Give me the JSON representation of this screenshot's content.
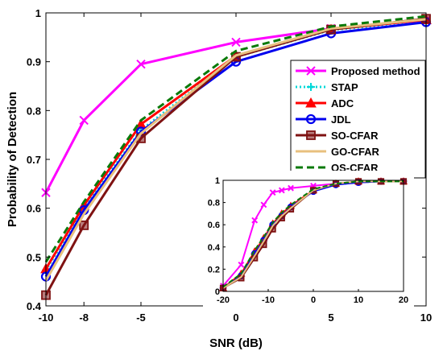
{
  "chart_data": [
    {
      "type": "line",
      "xlabel": "SNR (dB)",
      "ylabel": "Probability of Detection",
      "xlim": [
        -10,
        10
      ],
      "ylim": [
        0.4,
        1.0
      ],
      "xticks": [
        -10,
        -8,
        -5,
        0,
        5,
        10
      ],
      "yticks": [
        0.4,
        0.5,
        0.6,
        0.7,
        0.8,
        0.9,
        1.0
      ],
      "xtick_labels": [
        "-10",
        "-8",
        "-5",
        "0",
        "5",
        "10"
      ],
      "ytick_labels": [
        "0.4",
        "0.5",
        "0.6",
        "0.7",
        "0.8",
        "0.9",
        "1"
      ],
      "grid": false,
      "legend_position": "top-right",
      "x": [
        -10,
        -8,
        -5,
        0,
        5,
        10
      ],
      "series": [
        {
          "name": "Proposed method",
          "color": "#ff00ff",
          "style": "solid",
          "marker": "x",
          "values": [
            0.632,
            0.78,
            0.895,
            0.94,
            0.968,
            0.985
          ]
        },
        {
          "name": "STAP",
          "color": "#00d8d8",
          "style": "dotted",
          "marker": "plus",
          "values": [
            0.473,
            0.601,
            0.76,
            0.91,
            0.965,
            0.982
          ]
        },
        {
          "name": "ADC",
          "color": "#ff0000",
          "style": "solid",
          "marker": "triangle",
          "values": [
            0.476,
            0.606,
            0.772,
            0.912,
            0.966,
            0.986
          ]
        },
        {
          "name": "JDL",
          "color": "#0000ee",
          "style": "solid",
          "marker": "circle",
          "values": [
            0.46,
            0.596,
            0.757,
            0.9,
            0.958,
            0.981
          ]
        },
        {
          "name": "SO-CFAR",
          "color": "#7f1212",
          "style": "solid",
          "marker": "square",
          "values": [
            0.422,
            0.565,
            0.743,
            0.91,
            0.966,
            0.988
          ]
        },
        {
          "name": "GO-CFAR",
          "color": "#e8c07e",
          "style": "solid",
          "marker": "none",
          "values": [
            0.452,
            0.588,
            0.753,
            0.913,
            0.968,
            0.987
          ]
        },
        {
          "name": "OS-CFAR",
          "color": "#0a7a0a",
          "style": "dashed",
          "marker": "none",
          "values": [
            0.49,
            0.613,
            0.78,
            0.922,
            0.972,
            0.993
          ]
        }
      ]
    },
    {
      "type": "line",
      "role": "inset",
      "xlim": [
        -20,
        20
      ],
      "ylim": [
        0,
        1
      ],
      "xticks": [
        -20,
        -10,
        0,
        10,
        20
      ],
      "yticks": [
        0,
        0.2,
        0.4,
        0.6,
        0.8,
        1
      ],
      "xtick_labels": [
        "-20",
        "-10",
        "0",
        "10",
        "20"
      ],
      "ytick_labels": [
        "0",
        "0.2",
        "0.4",
        "0.6",
        "0.8",
        "1"
      ],
      "grid": false,
      "x": [
        -20,
        -16,
        -13,
        -11,
        -9,
        -7,
        -5,
        0,
        5,
        10,
        15,
        20
      ],
      "series": [
        {
          "name": "Proposed method",
          "color": "#ff00ff",
          "style": "solid",
          "marker": "x",
          "values": [
            0.05,
            0.24,
            0.64,
            0.78,
            0.89,
            0.91,
            0.93,
            0.95,
            0.97,
            0.98,
            0.99,
            0.99
          ]
        },
        {
          "name": "STAP",
          "color": "#00d8d8",
          "style": "dotted",
          "marker": "plus",
          "values": [
            0.03,
            0.15,
            0.35,
            0.47,
            0.61,
            0.7,
            0.76,
            0.91,
            0.96,
            0.98,
            0.99,
            0.99
          ]
        },
        {
          "name": "ADC",
          "color": "#ff0000",
          "style": "solid",
          "marker": "triangle",
          "values": [
            0.03,
            0.16,
            0.36,
            0.48,
            0.61,
            0.7,
            0.77,
            0.91,
            0.97,
            0.99,
            0.99,
            0.99
          ]
        },
        {
          "name": "JDL",
          "color": "#0000ee",
          "style": "solid",
          "marker": "circle",
          "values": [
            0.03,
            0.14,
            0.34,
            0.46,
            0.6,
            0.68,
            0.76,
            0.9,
            0.96,
            0.98,
            0.99,
            0.99
          ]
        },
        {
          "name": "SO-CFAR",
          "color": "#7f1212",
          "style": "solid",
          "marker": "square",
          "values": [
            0.03,
            0.12,
            0.3,
            0.42,
            0.56,
            0.66,
            0.74,
            0.91,
            0.97,
            0.99,
            0.99,
            0.99
          ]
        },
        {
          "name": "GO-CFAR",
          "color": "#e8c07e",
          "style": "solid",
          "marker": "none",
          "values": [
            0.03,
            0.13,
            0.32,
            0.45,
            0.59,
            0.68,
            0.75,
            0.91,
            0.97,
            0.99,
            0.99,
            0.99
          ]
        },
        {
          "name": "OS-CFAR",
          "color": "#0a7a0a",
          "style": "dashed",
          "marker": "none",
          "values": [
            0.04,
            0.16,
            0.37,
            0.49,
            0.62,
            0.71,
            0.78,
            0.92,
            0.97,
            0.99,
            0.99,
            0.99
          ]
        }
      ]
    }
  ]
}
